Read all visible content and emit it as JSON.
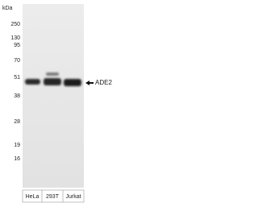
{
  "kda_label": "kDa",
  "markers": [
    "250",
    "130",
    "95",
    "70",
    "51",
    "38",
    "28",
    "19",
    "16"
  ],
  "lanes": [
    "HeLa",
    "293T",
    "Jurkat"
  ],
  "band_label": "ADE2"
}
